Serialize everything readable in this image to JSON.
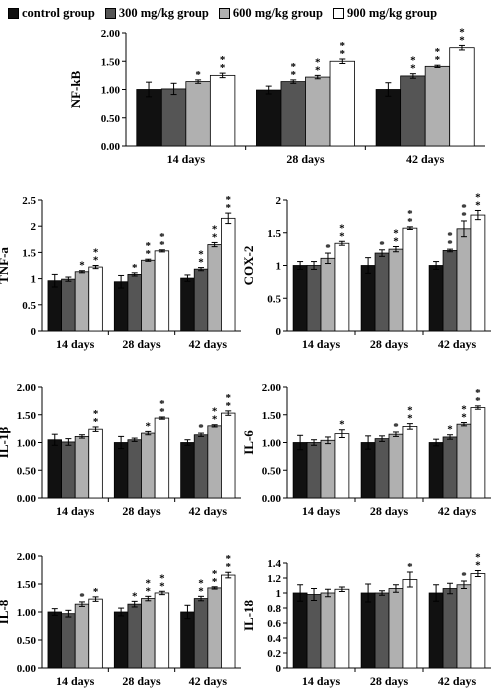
{
  "legend": {
    "items": [
      {
        "label": "control group",
        "color": "#111111"
      },
      {
        "label": "300 mg/kg group",
        "color": "#555555"
      },
      {
        "label": "600 mg/kg group",
        "color": "#b0b0b0"
      },
      {
        "label": "900 mg/kg group",
        "color": "#ffffff"
      }
    ]
  },
  "chart_data": [
    {
      "type": "bar",
      "ylabel": "NF-kB",
      "categories": [
        "14 days",
        "28 days",
        "42 days"
      ],
      "ylim": [
        0,
        2
      ],
      "yticks": [
        "0.00",
        "0.50",
        "1.00",
        "1.50",
        "2.00"
      ],
      "series": [
        {
          "name": "control group",
          "values": [
            1.0,
            0.99,
            1.0
          ],
          "errors": [
            0.13,
            0.07,
            0.12
          ],
          "marks": [
            "",
            "",
            ""
          ]
        },
        {
          "name": "300 mg/kg group",
          "values": [
            1.01,
            1.14,
            1.24
          ],
          "errors": [
            0.1,
            0.03,
            0.04
          ],
          "marks": [
            "",
            "**",
            "**"
          ]
        },
        {
          "name": "600 mg/kg group",
          "values": [
            1.14,
            1.22,
            1.41
          ],
          "errors": [
            0.03,
            0.03,
            0.02
          ],
          "marks": [
            "*",
            "**",
            "**"
          ]
        },
        {
          "name": "900 mg/kg group",
          "values": [
            1.25,
            1.5,
            1.74
          ],
          "errors": [
            0.04,
            0.04,
            0.04
          ],
          "marks": [
            "**",
            "**",
            "**"
          ]
        }
      ]
    },
    {
      "type": "bar",
      "ylabel": "TNF-a",
      "categories": [
        "14 days",
        "28 days",
        "42 days"
      ],
      "ylim": [
        0,
        2.5
      ],
      "yticks": [
        "0",
        "0.5",
        "1",
        "1.5",
        "2",
        "2.5"
      ],
      "series": [
        {
          "name": "control group",
          "values": [
            0.96,
            0.94,
            1.01
          ],
          "errors": [
            0.12,
            0.12,
            0.06
          ],
          "marks": [
            "",
            "",
            ""
          ]
        },
        {
          "name": "300 mg/kg group",
          "values": [
            0.99,
            1.08,
            1.18
          ],
          "errors": [
            0.04,
            0.03,
            0.03
          ],
          "marks": [
            "",
            "*",
            "**"
          ]
        },
        {
          "name": "600 mg/kg group",
          "values": [
            1.13,
            1.35,
            1.65
          ],
          "errors": [
            0.02,
            0.02,
            0.04
          ],
          "marks": [
            "*",
            "**",
            "**"
          ]
        },
        {
          "name": "900 mg/kg group",
          "values": [
            1.22,
            1.53,
            2.15
          ],
          "errors": [
            0.03,
            0.02,
            0.1
          ],
          "marks": [
            "**",
            "**",
            "**"
          ]
        }
      ]
    },
    {
      "type": "bar",
      "ylabel": "COX-2",
      "categories": [
        "14 days",
        "28 days",
        "42 days"
      ],
      "ylim": [
        0,
        2
      ],
      "yticks": [
        "0",
        "0.5",
        "1",
        "1.5",
        "2"
      ],
      "series": [
        {
          "name": "control group",
          "values": [
            1.0,
            1.0,
            1.0
          ],
          "errors": [
            0.06,
            0.12,
            0.06
          ],
          "marks": [
            "",
            "",
            ""
          ]
        },
        {
          "name": "300 mg/kg group",
          "values": [
            1.0,
            1.19,
            1.23
          ],
          "errors": [
            0.06,
            0.05,
            0.02
          ],
          "marks": [
            "",
            "*",
            "**"
          ]
        },
        {
          "name": "600 mg/kg group",
          "values": [
            1.11,
            1.25,
            1.56
          ],
          "errors": [
            0.08,
            0.04,
            0.12
          ],
          "marks": [
            "*",
            "**",
            "**"
          ]
        },
        {
          "name": "900 mg/kg group",
          "values": [
            1.34,
            1.57,
            1.77
          ],
          "errors": [
            0.03,
            0.02,
            0.07
          ],
          "marks": [
            "**",
            "**",
            "**"
          ]
        }
      ]
    },
    {
      "type": "bar",
      "ylabel": "IL-1β",
      "categories": [
        "14 days",
        "28 days",
        "42 days"
      ],
      "ylim": [
        0,
        2
      ],
      "yticks": [
        "0.00",
        "0.50",
        "1.00",
        "1.50",
        "2.00"
      ],
      "series": [
        {
          "name": "control group",
          "values": [
            1.05,
            1.0,
            1.0
          ],
          "errors": [
            0.1,
            0.11,
            0.05
          ],
          "marks": [
            "",
            "",
            ""
          ]
        },
        {
          "name": "300 mg/kg group",
          "values": [
            1.01,
            1.05,
            1.14
          ],
          "errors": [
            0.06,
            0.03,
            0.03
          ],
          "marks": [
            "",
            "",
            "*"
          ]
        },
        {
          "name": "600 mg/kg group",
          "values": [
            1.11,
            1.17,
            1.3
          ],
          "errors": [
            0.03,
            0.03,
            0.02
          ],
          "marks": [
            "",
            "*",
            "**"
          ]
        },
        {
          "name": "900 mg/kg group",
          "values": [
            1.24,
            1.44,
            1.53
          ],
          "errors": [
            0.04,
            0.02,
            0.04
          ],
          "marks": [
            "**",
            "**",
            "**"
          ]
        }
      ]
    },
    {
      "type": "bar",
      "ylabel": "IL-6",
      "categories": [
        "14 days",
        "28 days",
        "42 days"
      ],
      "ylim": [
        0,
        2
      ],
      "yticks": [
        "0.00",
        "0.50",
        "1.00",
        "1.50",
        "2.00"
      ],
      "series": [
        {
          "name": "control group",
          "values": [
            1.0,
            1.0,
            1.0
          ],
          "errors": [
            0.13,
            0.12,
            0.06
          ],
          "marks": [
            "",
            "",
            ""
          ]
        },
        {
          "name": "300 mg/kg group",
          "values": [
            1.0,
            1.07,
            1.1
          ],
          "errors": [
            0.05,
            0.05,
            0.04
          ],
          "marks": [
            "",
            "",
            "*"
          ]
        },
        {
          "name": "600 mg/kg group",
          "values": [
            1.04,
            1.15,
            1.33
          ],
          "errors": [
            0.06,
            0.04,
            0.03
          ],
          "marks": [
            "",
            "*",
            "**"
          ]
        },
        {
          "name": "900 mg/kg group",
          "values": [
            1.16,
            1.29,
            1.63
          ],
          "errors": [
            0.07,
            0.05,
            0.03
          ],
          "marks": [
            "*",
            "**",
            "**"
          ]
        }
      ]
    },
    {
      "type": "bar",
      "ylabel": "IL-8",
      "categories": [
        "14 days",
        "28 days",
        "42 days"
      ],
      "ylim": [
        0,
        2
      ],
      "yticks": [
        "0.00",
        "0.50",
        "1.00",
        "1.50",
        "2.00"
      ],
      "series": [
        {
          "name": "control group",
          "values": [
            1.0,
            1.0,
            1.0
          ],
          "errors": [
            0.06,
            0.07,
            0.12
          ],
          "marks": [
            "",
            "",
            ""
          ]
        },
        {
          "name": "300 mg/kg group",
          "values": [
            0.97,
            1.14,
            1.24
          ],
          "errors": [
            0.06,
            0.05,
            0.04
          ],
          "marks": [
            "",
            "*",
            "**"
          ]
        },
        {
          "name": "600 mg/kg group",
          "values": [
            1.14,
            1.24,
            1.43
          ],
          "errors": [
            0.04,
            0.04,
            0.02
          ],
          "marks": [
            "*",
            "**",
            "**"
          ]
        },
        {
          "name": "900 mg/kg group",
          "values": [
            1.23,
            1.34,
            1.66
          ],
          "errors": [
            0.04,
            0.03,
            0.05
          ],
          "marks": [
            "*",
            "**",
            "**"
          ]
        }
      ]
    },
    {
      "type": "bar",
      "ylabel": "IL-18",
      "categories": [
        "14 days",
        "28 days",
        "42 days"
      ],
      "ylim": [
        0,
        1.4
      ],
      "yticks": [
        "0",
        "0.2",
        "0.4",
        "0.6",
        "0.8",
        "1",
        "1.2",
        "1.4"
      ],
      "series": [
        {
          "name": "control group",
          "values": [
            1.0,
            1.0,
            1.0
          ],
          "errors": [
            0.11,
            0.12,
            0.11
          ],
          "marks": [
            "",
            "",
            ""
          ]
        },
        {
          "name": "300 mg/kg group",
          "values": [
            0.98,
            1.0,
            1.06
          ],
          "errors": [
            0.08,
            0.03,
            0.07
          ],
          "marks": [
            "",
            "",
            ""
          ]
        },
        {
          "name": "600 mg/kg group",
          "values": [
            1.0,
            1.06,
            1.11
          ],
          "errors": [
            0.05,
            0.05,
            0.05
          ],
          "marks": [
            "",
            "",
            "*"
          ]
        },
        {
          "name": "900 mg/kg group",
          "values": [
            1.05,
            1.18,
            1.26
          ],
          "errors": [
            0.03,
            0.1,
            0.04
          ],
          "marks": [
            "",
            "*",
            "**"
          ]
        }
      ]
    }
  ]
}
